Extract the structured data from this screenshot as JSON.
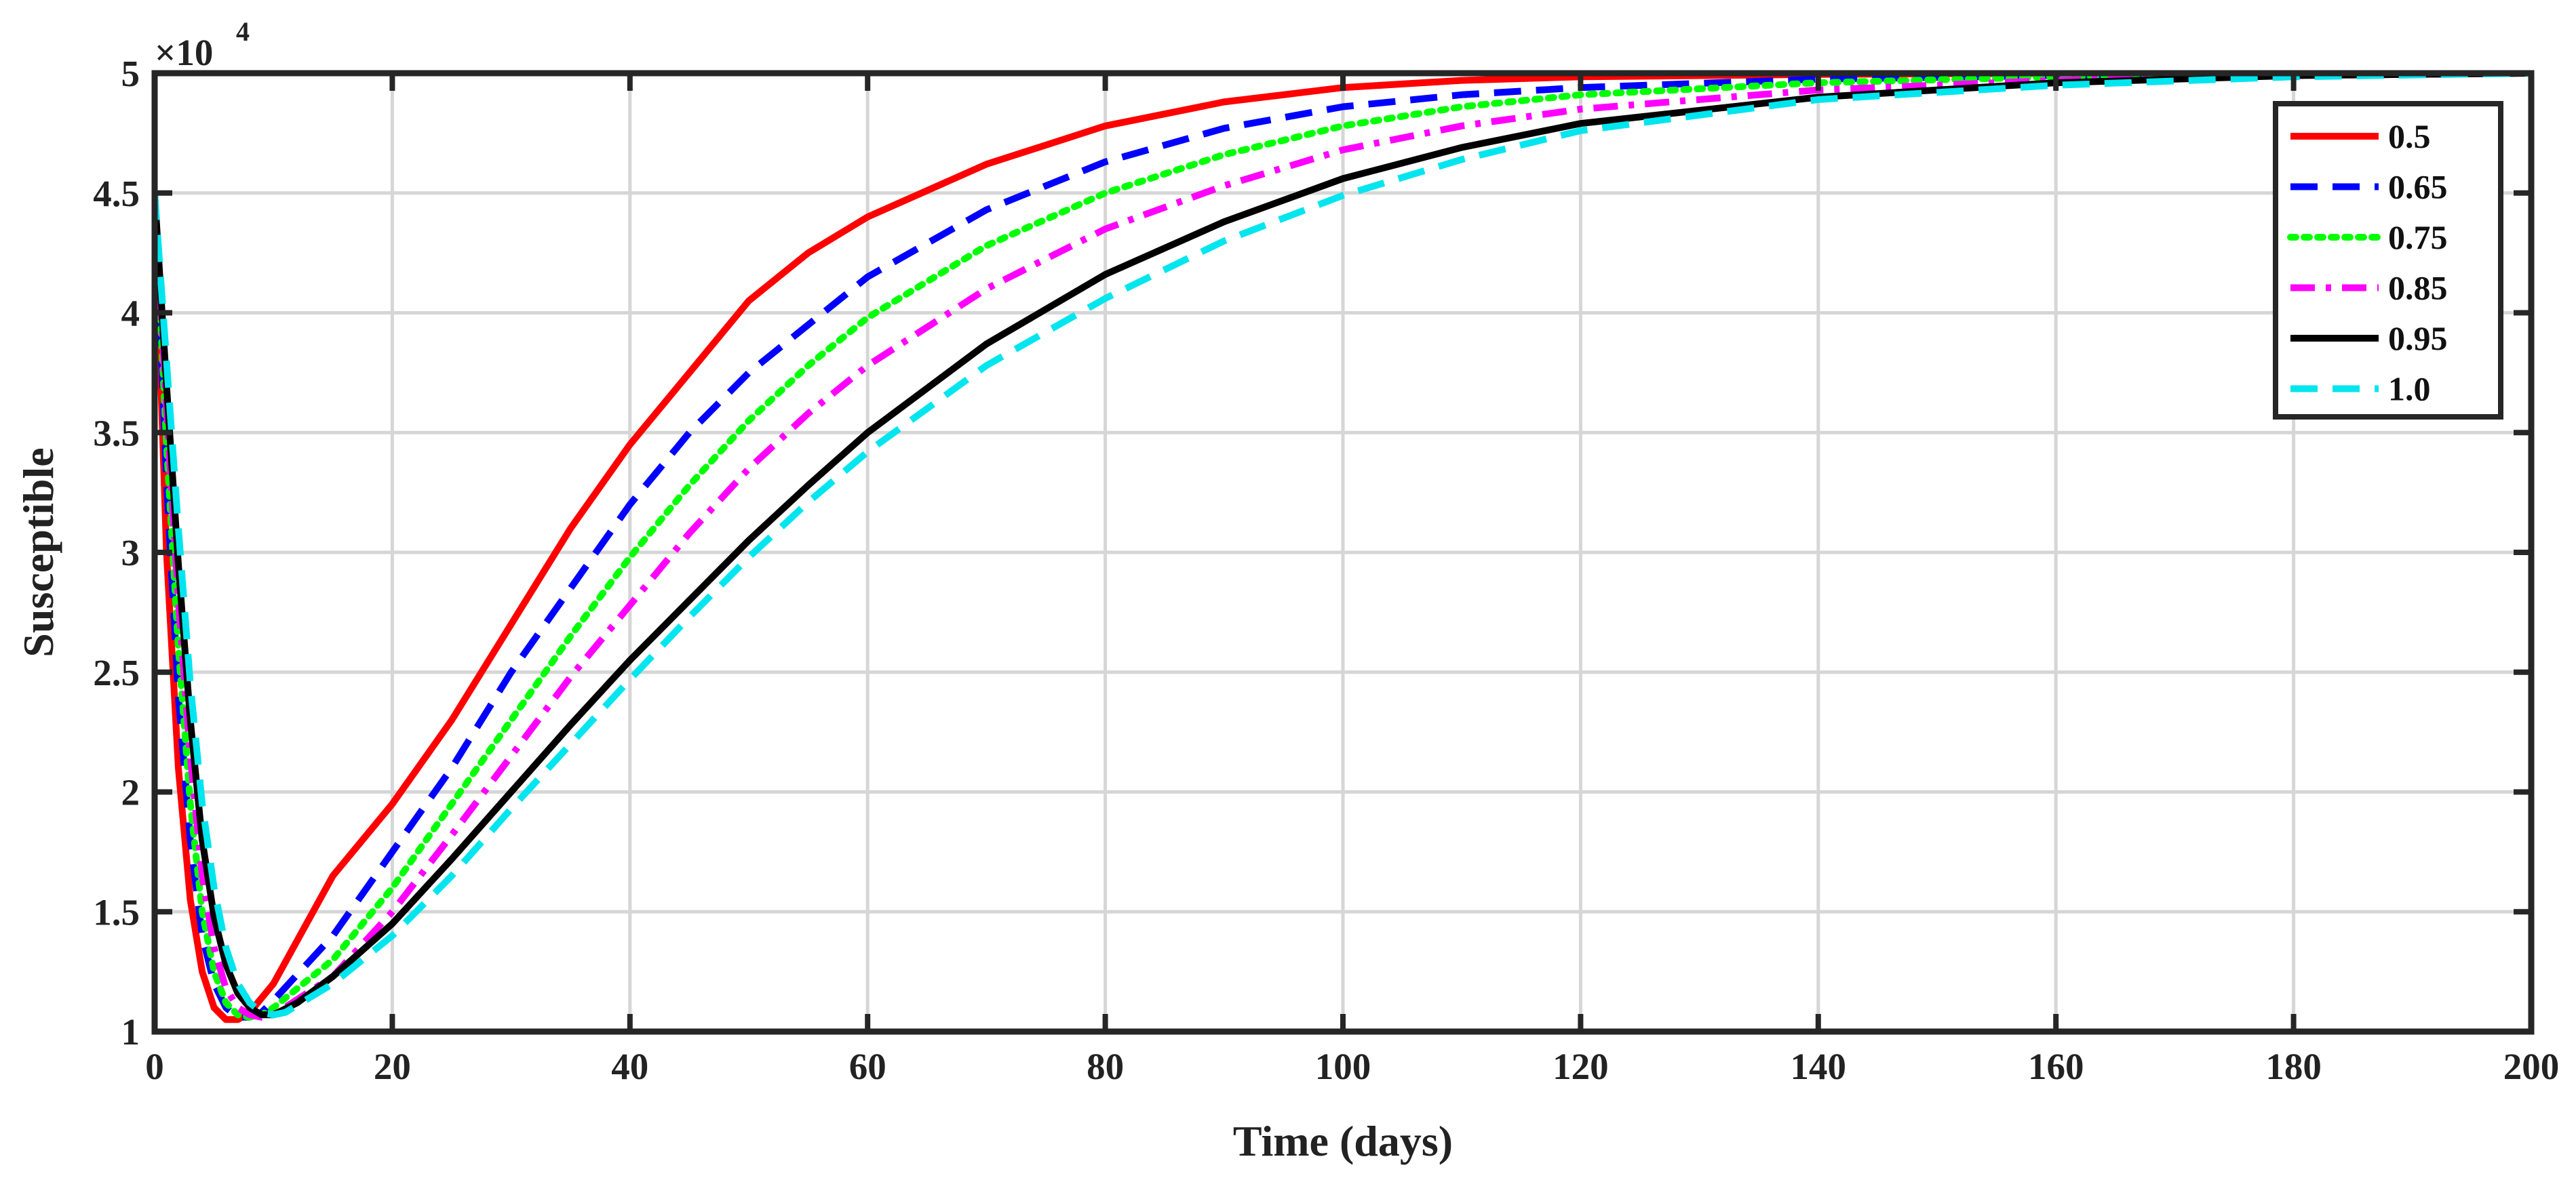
{
  "chart_data": {
    "type": "line",
    "xlabel": "Time (days)",
    "ylabel": "Susceptible",
    "y_scale_label": "×10",
    "y_scale_exponent": "4",
    "xlim": [
      0,
      200
    ],
    "ylim": [
      10000,
      50000
    ],
    "x_ticks": [
      0,
      20,
      40,
      60,
      80,
      100,
      120,
      140,
      160,
      180,
      200
    ],
    "x_tick_labels": [
      "0",
      "20",
      "40",
      "60",
      "80",
      "100",
      "120",
      "140",
      "160",
      "180",
      "200"
    ],
    "y_ticks": [
      10000,
      15000,
      20000,
      25000,
      30000,
      35000,
      40000,
      45000,
      50000
    ],
    "y_tick_labels": [
      "1",
      "1.5",
      "2",
      "2.5",
      "3",
      "3.5",
      "4",
      "4.5",
      "5"
    ],
    "grid": true,
    "legend_position": "top-right",
    "series": [
      {
        "name": "0.5",
        "color": "#ff0000",
        "dash": "solid",
        "x": [
          0,
          1,
          2,
          3,
          4,
          5,
          6,
          7,
          8,
          10,
          12,
          15,
          20,
          25,
          30,
          35,
          40,
          45,
          50,
          55,
          60,
          70,
          80,
          90,
          100,
          110,
          120,
          140,
          160,
          180,
          200
        ],
        "y": [
          45000,
          30000,
          21000,
          15500,
          12500,
          11000,
          10500,
          10500,
          10800,
          12000,
          13800,
          16500,
          19500,
          23000,
          27000,
          31000,
          34500,
          37500,
          40500,
          42500,
          44000,
          46200,
          47800,
          48800,
          49400,
          49700,
          49850,
          49950,
          50000,
          50000,
          50000
        ]
      },
      {
        "name": "0.65",
        "color": "#0000ff",
        "dash": "dashed",
        "x": [
          0,
          1,
          2,
          3,
          4,
          5,
          6,
          7,
          8,
          9,
          10,
          15,
          20,
          25,
          30,
          35,
          40,
          45,
          50,
          55,
          60,
          70,
          80,
          90,
          100,
          110,
          120,
          140,
          160,
          180,
          200
        ],
        "y": [
          45000,
          33000,
          24000,
          18000,
          14000,
          12000,
          11000,
          10600,
          10600,
          10800,
          11300,
          14000,
          17500,
          21000,
          25000,
          28500,
          32000,
          35000,
          37500,
          39500,
          41500,
          44300,
          46300,
          47700,
          48600,
          49100,
          49400,
          49750,
          49900,
          49980,
          50000
        ]
      },
      {
        "name": "0.75",
        "color": "#00ff00",
        "dash": "dotted",
        "x": [
          0,
          1,
          2,
          3,
          4,
          5,
          6,
          7,
          8,
          9,
          10,
          15,
          20,
          25,
          30,
          35,
          40,
          45,
          50,
          55,
          60,
          70,
          80,
          90,
          100,
          110,
          120,
          140,
          160,
          180,
          200
        ],
        "y": [
          45000,
          34500,
          26000,
          19500,
          15000,
          12500,
          11200,
          10700,
          10600,
          10700,
          11000,
          13000,
          16000,
          19500,
          23000,
          26500,
          29800,
          32800,
          35500,
          37800,
          39800,
          42800,
          45000,
          46600,
          47800,
          48600,
          49100,
          49600,
          49850,
          49950,
          50000
        ]
      },
      {
        "name": "0.85",
        "color": "#ff00ff",
        "dash": "dashdot",
        "x": [
          0,
          1,
          2,
          3,
          4,
          5,
          6,
          7,
          8,
          9,
          10,
          15,
          20,
          25,
          30,
          35,
          40,
          45,
          50,
          55,
          60,
          70,
          80,
          90,
          100,
          110,
          120,
          140,
          160,
          180,
          200
        ],
        "y": [
          45000,
          36000,
          28000,
          21500,
          16500,
          13500,
          11800,
          11000,
          10700,
          10600,
          10700,
          12300,
          15000,
          18200,
          21500,
          24800,
          27800,
          30800,
          33500,
          35800,
          37800,
          41000,
          43500,
          45300,
          46800,
          47800,
          48500,
          49300,
          49700,
          49900,
          50000
        ]
      },
      {
        "name": "0.95",
        "color": "#000000",
        "dash": "solid",
        "x": [
          0,
          1,
          2,
          3,
          4,
          5,
          6,
          7,
          8,
          9,
          10,
          12,
          15,
          20,
          25,
          30,
          35,
          40,
          45,
          50,
          55,
          60,
          70,
          80,
          90,
          100,
          110,
          120,
          140,
          160,
          180,
          200
        ],
        "y": [
          45000,
          37000,
          29500,
          23000,
          18000,
          14800,
          12800,
          11600,
          11000,
          10700,
          10700,
          11200,
          12300,
          14500,
          17200,
          20000,
          22800,
          25500,
          28000,
          30500,
          32800,
          35000,
          38700,
          41600,
          43800,
          45600,
          46900,
          47900,
          49000,
          49600,
          49900,
          50000
        ]
      },
      {
        "name": "1.0",
        "color": "#00e5ee",
        "dash": "dashed",
        "x": [
          0,
          1,
          2,
          3,
          4,
          5,
          6,
          7,
          8,
          9,
          10,
          11,
          12,
          15,
          20,
          25,
          30,
          35,
          40,
          45,
          50,
          55,
          60,
          70,
          80,
          90,
          100,
          110,
          120,
          140,
          160,
          180,
          200
        ],
        "y": [
          45000,
          38000,
          31000,
          24500,
          19500,
          16000,
          13500,
          12000,
          11200,
          10800,
          10700,
          10800,
          11100,
          12000,
          14000,
          16500,
          19300,
          22000,
          24700,
          27300,
          29800,
          32100,
          34200,
          37800,
          40600,
          43000,
          44900,
          46400,
          47600,
          48900,
          49500,
          49850,
          50000
        ]
      }
    ]
  }
}
